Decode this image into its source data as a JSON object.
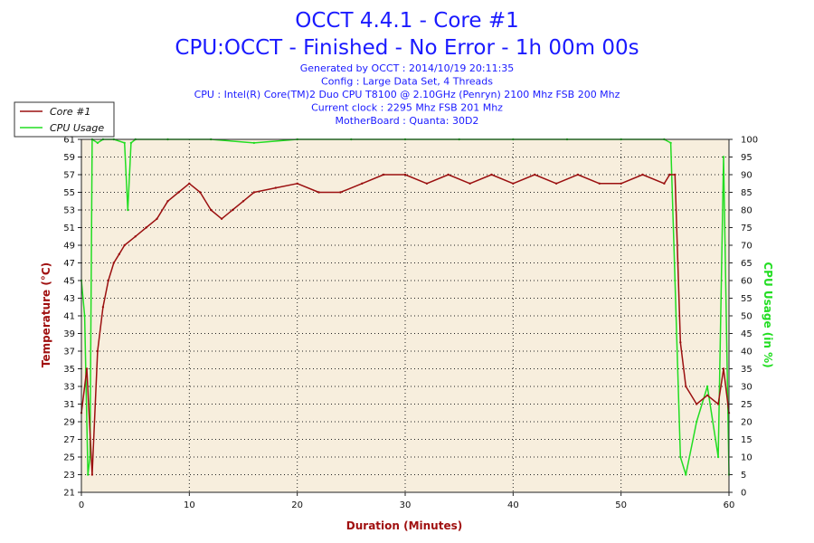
{
  "header": {
    "title_line1": "OCCT 4.4.1 - Core #1",
    "title_line2": "CPU:OCCT - Finished - No Error - 1h 00m 00s",
    "info_lines": [
      "Generated by OCCT : 2014/10/19 20:11:35",
      "Config : Large Data Set, 4 Threads",
      "CPU : Intel(R) Core(TM)2 Duo CPU T8100 @ 2.10GHz (Penryn) 2100 Mhz FSB 200 Mhz",
      "Current clock : 2295 Mhz FSB 201 Mhz",
      "MotherBoard : Quanta: 30D2"
    ]
  },
  "legend": {
    "items": [
      {
        "label": "Core #1",
        "color": "#9b1010"
      },
      {
        "label": "CPU Usage",
        "color": "#22dd22"
      }
    ]
  },
  "colors": {
    "plot_background": "#f7eedd",
    "grid": "#222222",
    "temperature": "#9b1010",
    "cpu_usage": "#22dd22",
    "left_axis_title": "#a01010",
    "right_axis_title": "#22dd22",
    "x_axis_title": "#a01010",
    "title": "#1a1aff"
  },
  "chart_data": {
    "type": "line",
    "xlabel": "Duration (Minutes)",
    "ylabel": "Temperature (°C)",
    "y2label": "CPU Usage (in %)",
    "xlim": [
      0,
      60
    ],
    "ylim": [
      21,
      61
    ],
    "y2lim": [
      0,
      100
    ],
    "x_ticks": [
      "0",
      "10",
      "20",
      "30",
      "40",
      "50",
      "60"
    ],
    "y_ticks": [
      "21",
      "23",
      "25",
      "27",
      "29",
      "31",
      "33",
      "35",
      "37",
      "39",
      "41",
      "43",
      "45",
      "47",
      "49",
      "51",
      "53",
      "55",
      "57",
      "59",
      "61"
    ],
    "y2_ticks": [
      "0",
      "5",
      "10",
      "15",
      "20",
      "25",
      "30",
      "35",
      "40",
      "45",
      "50",
      "55",
      "60",
      "65",
      "70",
      "75",
      "80",
      "85",
      "90",
      "95",
      "100"
    ],
    "grid": true,
    "legend_position": "top-left",
    "series": [
      {
        "name": "Core #1",
        "axis": "left",
        "x": [
          0,
          0.5,
          1,
          1.5,
          2,
          2.5,
          3,
          3.5,
          4,
          5,
          6,
          7,
          8,
          9,
          10,
          11,
          12,
          13,
          14,
          15,
          16,
          18,
          20,
          22,
          24,
          26,
          28,
          30,
          32,
          34,
          36,
          38,
          40,
          42,
          44,
          46,
          48,
          50,
          52,
          54,
          54.5,
          55,
          55.5,
          56,
          57,
          58,
          59,
          59.5,
          60
        ],
        "values": [
          30,
          35,
          23,
          37,
          42,
          45,
          47,
          48,
          49,
          50,
          51,
          52,
          54,
          55,
          56,
          55,
          53,
          52,
          53,
          54,
          55,
          55.5,
          56,
          55,
          55,
          56,
          57,
          57,
          56,
          57,
          56,
          57,
          56,
          57,
          56,
          57,
          56,
          56,
          57,
          56,
          57,
          57,
          38,
          33,
          31,
          32,
          31,
          35,
          30
        ]
      },
      {
        "name": "CPU Usage",
        "axis": "right",
        "x": [
          0,
          0.3,
          0.6,
          0.8,
          1,
          1.5,
          2,
          3,
          4,
          4.3,
          4.6,
          5,
          8,
          12,
          16,
          20,
          25,
          30,
          35,
          40,
          45,
          50,
          54,
          54.6,
          55,
          55.5,
          56,
          57,
          58,
          59,
          59.5,
          60
        ],
        "values": [
          60,
          50,
          5,
          10,
          100,
          99,
          100,
          100,
          99,
          80,
          99,
          100,
          100,
          100,
          99,
          100,
          100,
          100,
          100,
          100,
          100,
          100,
          100,
          99,
          60,
          10,
          5,
          20,
          30,
          10,
          95,
          5
        ]
      }
    ]
  }
}
